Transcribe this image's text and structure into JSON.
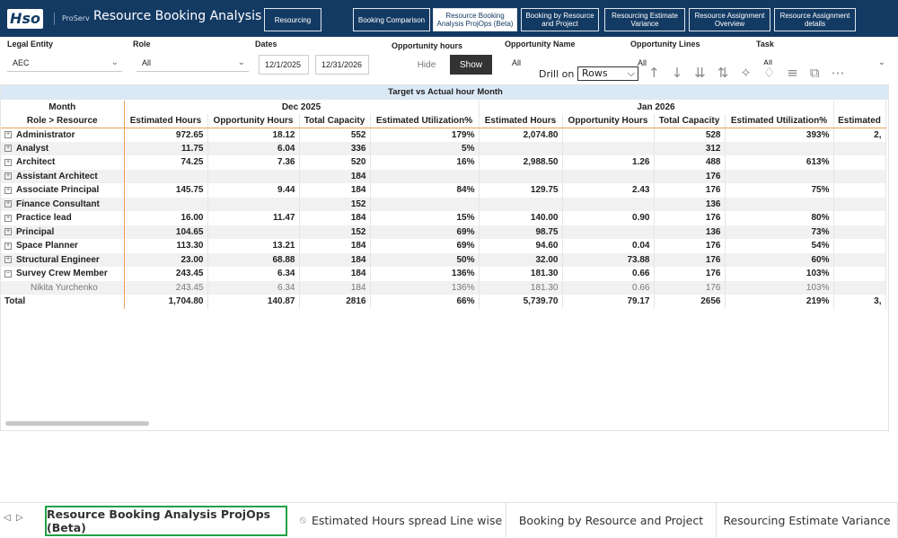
{
  "header": {
    "logo": "Hso",
    "brand": "ProServ",
    "title": "Resource Booking Analysis",
    "nav": [
      "Resourcing",
      "Booking Comparison",
      "Resource Booking Analysis ProjOps (Beta)",
      "Booking by Resource and Project",
      "Resourcing Estimate Variance",
      "Resource Assignment Overview",
      "Resource Assignment details"
    ]
  },
  "filters": {
    "legal_entity": {
      "label": "Legal Entity",
      "value": "AEC"
    },
    "role": {
      "label": "Role",
      "value": "All"
    },
    "dates": {
      "label": "Dates",
      "from": "12/1/2025",
      "to": "12/31/2026"
    },
    "opportunity_hours": {
      "label": "Opportunity hours",
      "options": [
        "Hide",
        "Show"
      ]
    },
    "opportunity_name": {
      "label": "Opportunity Name",
      "value": "All"
    },
    "opportunity_lines": {
      "label": "Opportunity Lines",
      "value": "All"
    },
    "task": {
      "label": "Task",
      "value": "All"
    }
  },
  "drill": {
    "label": "Drill on",
    "value": "Rows"
  },
  "table": {
    "title": "Target vs Actual hour Month",
    "month_label": "Month",
    "row_header": "Role > Resource",
    "periods": [
      "Dec 2025",
      "Jan 2026"
    ],
    "columns": [
      "Estimated Hours",
      "Opportunity Hours",
      "Total Capacity",
      "Estimated Utilization%",
      "Estimated Hours",
      "Opportunity Hours",
      "Total Capacity",
      "Estimated Utilization%",
      "Estimated"
    ],
    "rows": [
      {
        "label": "Administrator",
        "values": [
          "972.65",
          "18.12",
          "552",
          "179%",
          "2,074.80",
          null,
          "528",
          "393%",
          "2,"
        ]
      },
      {
        "label": "Analyst",
        "values": [
          "11.75",
          "6.04",
          "336",
          "5%",
          null,
          null,
          "312",
          null,
          null
        ]
      },
      {
        "label": "Architect",
        "values": [
          "74.25",
          "7.36",
          "520",
          "16%",
          "2,988.50",
          "1.26",
          "488",
          "613%",
          null
        ]
      },
      {
        "label": "Assistant Architect",
        "values": [
          null,
          null,
          "184",
          null,
          null,
          null,
          "176",
          null,
          null
        ]
      },
      {
        "label": "Associate Principal",
        "values": [
          "145.75",
          "9.44",
          "184",
          "84%",
          "129.75",
          "2.43",
          "176",
          "75%",
          null
        ]
      },
      {
        "label": "Finance Consultant",
        "values": [
          null,
          null,
          "152",
          null,
          null,
          null,
          "136",
          null,
          null
        ]
      },
      {
        "label": "Practice lead",
        "values": [
          "16.00",
          "11.47",
          "184",
          "15%",
          "140.00",
          "0.90",
          "176",
          "80%",
          null
        ]
      },
      {
        "label": "Principal",
        "values": [
          "104.65",
          null,
          "152",
          "69%",
          "98.75",
          null,
          "136",
          "73%",
          null
        ]
      },
      {
        "label": "Space Planner",
        "values": [
          "113.30",
          "13.21",
          "184",
          "69%",
          "94.60",
          "0.04",
          "176",
          "54%",
          null
        ]
      },
      {
        "label": "Structural Engineer",
        "values": [
          "23.00",
          "68.88",
          "184",
          "50%",
          "32.00",
          "73.88",
          "176",
          "60%",
          null
        ]
      },
      {
        "label": "Survey Crew Member",
        "values": [
          "243.45",
          "6.34",
          "184",
          "136%",
          "181.30",
          "0.66",
          "176",
          "103%",
          null
        ]
      },
      {
        "label": "Nikita Yurchenko",
        "child": true,
        "values": [
          "243.45",
          "6.34",
          "184",
          "136%",
          "181.30",
          "0.66",
          "176",
          "103%",
          null
        ]
      }
    ],
    "total": {
      "label": "Total",
      "values": [
        "1,704.80",
        "140.87",
        "2816",
        "66%",
        "5,739.70",
        "79.17",
        "2656",
        "219%",
        "3,"
      ]
    }
  },
  "tabs": [
    "Resource Booking Analysis ProjOps (Beta)",
    "Estimated Hours spread Line wise",
    "Booking by Resource and Project",
    "Resourcing Estimate Variance"
  ]
}
